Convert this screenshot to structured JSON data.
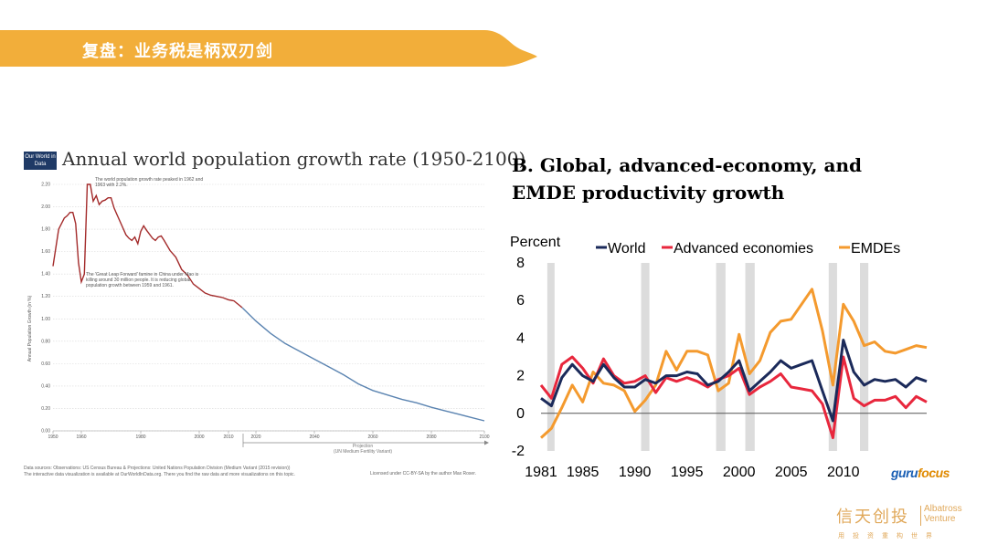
{
  "slide": {
    "title": "复盘：业务税是柄双刃剑"
  },
  "left_chart": {
    "logo_text": "Our World in Data",
    "title": "Annual world population growth rate (1950-2100)",
    "annotation_peak": "The world population growth rate peaked in 1962 and 1963 with 2.2%.",
    "annotation_leap": "The 'Great Leap Forward' famine in China under Mao is killing around 30 million people. It is reducing global population growth between 1959 and 1961.",
    "ylabel": "Annual Population Growth (in %)",
    "projection_label": "Projection",
    "projection_sub": "(UN Medium Fertility Variant)",
    "footer_line1": "Data sources: Observations: US Census Bureau & Projections: United Nations Population Division (Medium Variant (2015 revision))",
    "footer_line2": "The interactive data visualization is available at OurWorldInData.org. There you find the raw data and more visualizations on this topic.",
    "footer_license": "Licensed under CC-BY-SA by the author Max Roser."
  },
  "right_chart": {
    "title_line1": "B.  Global, advanced-economy, and",
    "title_line2": "EMDE productivity growth",
    "unit_label": "Percent"
  },
  "chart_data": [
    {
      "type": "line",
      "title": "Annual world population growth rate (1950-2100)",
      "ylabel": "Annual Population Growth (in %)",
      "xlim": [
        1950,
        2100
      ],
      "ylim": [
        0,
        2.2
      ],
      "x_ticks": [
        "1950",
        "1960",
        "1980",
        "2000",
        "2010",
        "2020",
        "2040",
        "2060",
        "2080",
        "2100"
      ],
      "y_ticks": [
        "0.00",
        "0.20",
        "0.40",
        "0.60",
        "0.80",
        "1.00",
        "1.20",
        "1.40",
        "1.60",
        "1.80",
        "2.00",
        "2.20"
      ],
      "series": [
        {
          "color": "#a32a2a",
          "x": [
            1950,
            1952,
            1954,
            1955,
            1956,
            1957,
            1958,
            1959,
            1960,
            1961,
            1962,
            1963,
            1964,
            1965,
            1966,
            1967,
            1968,
            1969,
            1970,
            1971,
            1972,
            1973,
            1975,
            1976,
            1977,
            1978,
            1979,
            1980,
            1981,
            1982,
            1984,
            1985,
            1986,
            1987,
            1988,
            1990,
            1992,
            1994,
            1996,
            1998,
            2000,
            2002,
            2004,
            2006,
            2008,
            2010,
            2012,
            2014,
            2015
          ],
          "y": [
            1.47,
            1.8,
            1.9,
            1.92,
            1.95,
            1.95,
            1.85,
            1.5,
            1.33,
            1.4,
            2.2,
            2.2,
            2.05,
            2.1,
            2.02,
            2.05,
            2.06,
            2.08,
            2.08,
            1.99,
            1.93,
            1.87,
            1.75,
            1.72,
            1.7,
            1.73,
            1.67,
            1.78,
            1.83,
            1.79,
            1.72,
            1.7,
            1.73,
            1.74,
            1.7,
            1.61,
            1.55,
            1.44,
            1.39,
            1.31,
            1.27,
            1.23,
            1.21,
            1.2,
            1.19,
            1.17,
            1.16,
            1.12,
            1.1
          ]
        },
        {
          "color": "#5b84b1",
          "x": [
            2015,
            2020,
            2025,
            2030,
            2035,
            2040,
            2045,
            2050,
            2055,
            2060,
            2065,
            2070,
            2075,
            2080,
            2085,
            2090,
            2095,
            2100
          ],
          "y": [
            1.1,
            0.98,
            0.87,
            0.78,
            0.71,
            0.64,
            0.57,
            0.5,
            0.42,
            0.36,
            0.32,
            0.28,
            0.25,
            0.21,
            0.18,
            0.15,
            0.12,
            0.09
          ]
        }
      ]
    },
    {
      "type": "line",
      "title": "B.  Global, advanced-economy, and EMDE productivity growth",
      "ylabel": "Percent",
      "xlim": [
        1981,
        2018
      ],
      "ylim": [
        -2,
        8
      ],
      "x_ticks": [
        "1981",
        "1985",
        "1990",
        "1995",
        "2000",
        "2005",
        "2010"
      ],
      "y_ticks": [
        "-2",
        "0",
        "2",
        "4",
        "6",
        "8"
      ],
      "recession_bands": [
        [
          1981.6,
          1982.3
        ],
        [
          1990.6,
          1991.4
        ],
        [
          1997.8,
          1998.7
        ],
        [
          2000.6,
          2001.5
        ],
        [
          2008.6,
          2009.4
        ],
        [
          2011.6,
          2012.4
        ]
      ],
      "x": [
        1981,
        1982,
        1983,
        1984,
        1985,
        1986,
        1987,
        1988,
        1989,
        1990,
        1991,
        1992,
        1993,
        1994,
        1995,
        1996,
        1997,
        1998,
        1999,
        2000,
        2001,
        2002,
        2003,
        2004,
        2005,
        2006,
        2007,
        2008,
        2009,
        2010,
        2011,
        2012,
        2013,
        2014,
        2015,
        2016,
        2017,
        2018
      ],
      "series": [
        {
          "name": "World",
          "color": "#1b2a5a",
          "values": [
            0.8,
            0.4,
            1.9,
            2.6,
            2.0,
            1.7,
            2.6,
            1.9,
            1.4,
            1.4,
            1.8,
            1.6,
            2.0,
            2.0,
            2.2,
            2.1,
            1.5,
            1.7,
            2.2,
            2.8,
            1.2,
            1.7,
            2.2,
            2.8,
            2.4,
            2.6,
            2.8,
            1.2,
            -0.4,
            3.9,
            2.2,
            1.5,
            1.8,
            1.7,
            1.8,
            1.4,
            1.9,
            1.7
          ]
        },
        {
          "name": "Advanced economies",
          "color": "#e8273d",
          "values": [
            1.5,
            0.8,
            2.6,
            3.0,
            2.4,
            1.6,
            2.9,
            2.0,
            1.6,
            1.7,
            2.0,
            1.1,
            1.9,
            1.7,
            1.9,
            1.7,
            1.4,
            1.8,
            2.0,
            2.4,
            1.0,
            1.4,
            1.7,
            2.1,
            1.4,
            1.3,
            1.2,
            0.5,
            -1.3,
            3.0,
            0.8,
            0.4,
            0.7,
            0.7,
            0.9,
            0.3,
            0.9,
            0.6
          ]
        },
        {
          "name": "EMDEs",
          "color": "#f49a2e",
          "values": [
            -1.3,
            -0.8,
            0.3,
            1.5,
            0.6,
            2.2,
            1.6,
            1.5,
            1.2,
            0.1,
            0.7,
            1.5,
            3.3,
            2.3,
            3.3,
            3.3,
            3.1,
            1.2,
            1.6,
            4.2,
            2.1,
            2.8,
            4.3,
            4.9,
            5.0,
            5.8,
            6.6,
            4.4,
            1.5,
            5.8,
            4.9,
            3.6,
            3.8,
            3.3,
            3.2,
            3.4,
            3.6,
            3.5
          ]
        }
      ]
    }
  ],
  "brand": {
    "watermark": "gurufocus",
    "cn_name": "信天创投",
    "en_line1": "Albatross",
    "en_line2": "Venture",
    "tagline": "用投资重构世界"
  }
}
